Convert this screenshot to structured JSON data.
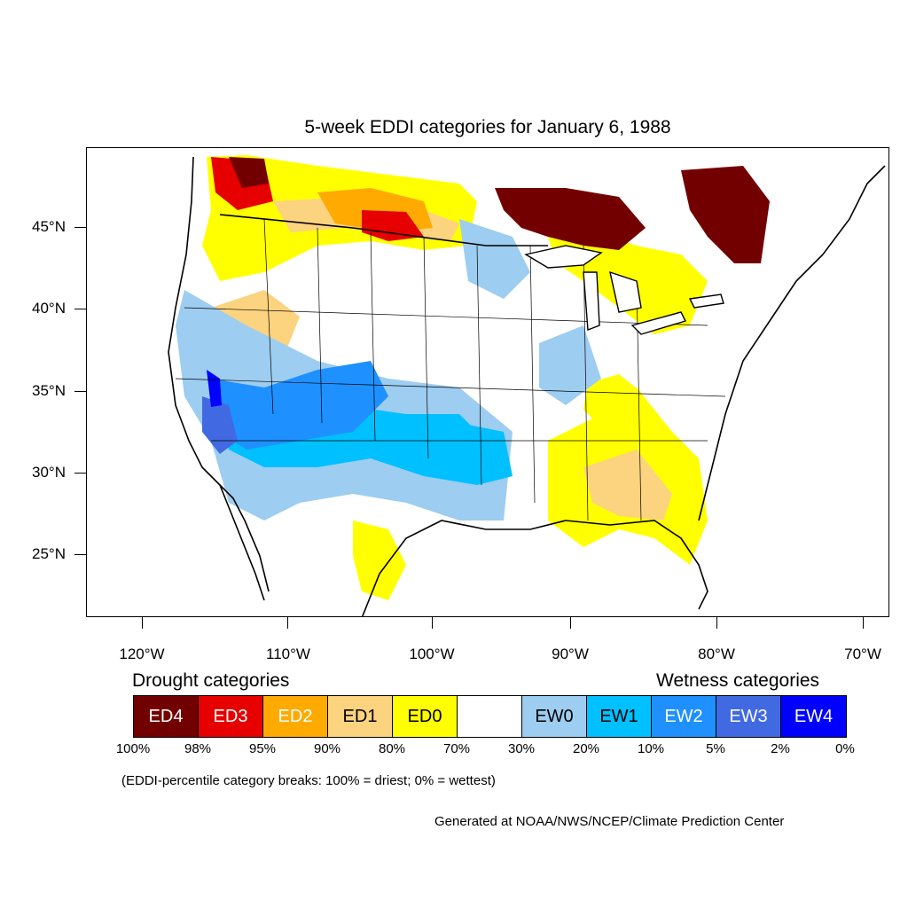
{
  "title": "5-week EDDI categories for January 6, 1988",
  "lat_labels": [
    "45°N",
    "40°N",
    "35°N",
    "30°N",
    "25°N"
  ],
  "lon_labels": [
    "120°W",
    "110°W",
    "100°W",
    "90°W",
    "80°W",
    "70°W"
  ],
  "legend": {
    "drought_heading": "Drought categories",
    "wetness_heading": "Wetness categories",
    "categories": [
      {
        "label": "ED4",
        "color": "#730000",
        "text_color": "#ffffff"
      },
      {
        "label": "ED3",
        "color": "#e60000",
        "text_color": "#ffffff"
      },
      {
        "label": "ED2",
        "color": "#ffaa00",
        "text_color": "#ffffff"
      },
      {
        "label": "ED1",
        "color": "#fcd37f",
        "text_color": "#000000"
      },
      {
        "label": "ED0",
        "color": "#ffff00",
        "text_color": "#000000"
      },
      {
        "label": "",
        "color": "#ffffff",
        "text_color": "#000000"
      },
      {
        "label": "EW0",
        "color": "#9dcdf0",
        "text_color": "#000000"
      },
      {
        "label": "EW1",
        "color": "#00c0ff",
        "text_color": "#000000"
      },
      {
        "label": "EW2",
        "color": "#1e90ff",
        "text_color": "#ffffff"
      },
      {
        "label": "EW3",
        "color": "#4169e1",
        "text_color": "#ffffff"
      },
      {
        "label": "EW4",
        "color": "#0000ff",
        "text_color": "#ffffff"
      }
    ],
    "percent_breaks": [
      "100%",
      "98%",
      "95%",
      "90%",
      "80%",
      "70%",
      "30%",
      "20%",
      "10%",
      "5%",
      "2%",
      "0%"
    ]
  },
  "breaks_note": "(EDDI-percentile category breaks: 100% = driest; 0% = wettest)",
  "credit": "Generated at NOAA/NWS/NCEP/Climate Prediction Center"
}
